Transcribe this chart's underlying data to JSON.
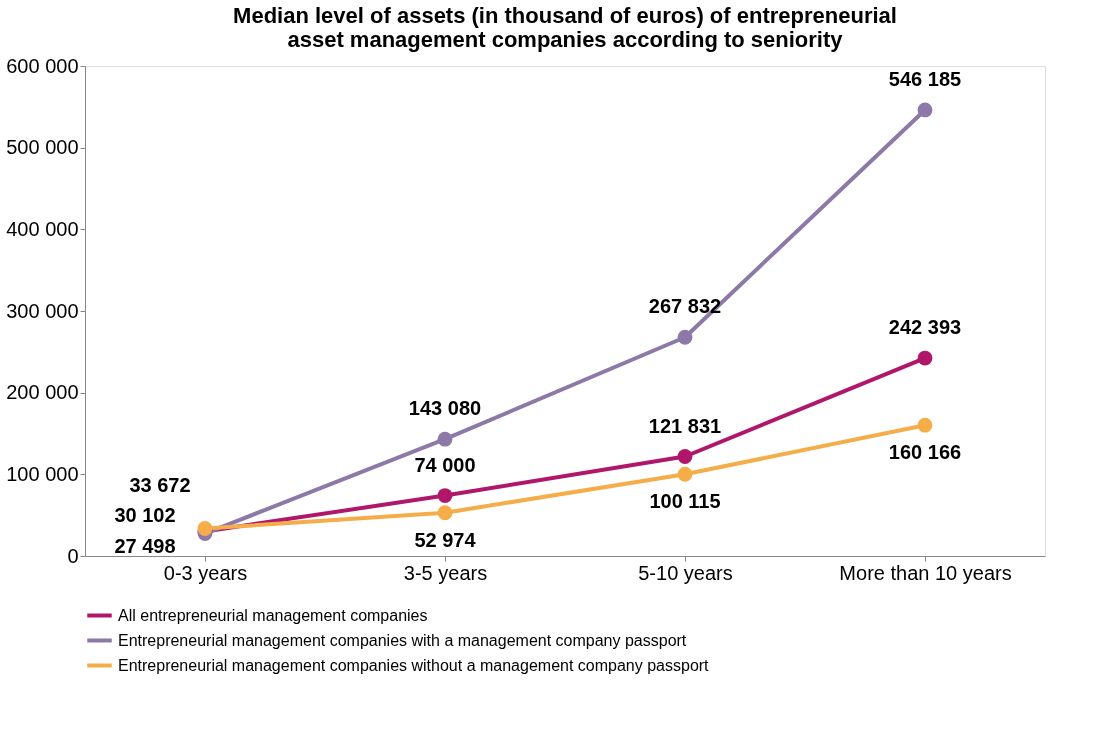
{
  "chart_data": {
    "type": "line",
    "title": [
      "Median level of assets (in thousand of euros) of entrepreneurial",
      "asset management companies according to seniority"
    ],
    "categories": [
      "0-3 years",
      "3-5 years",
      "5-10 years",
      "More than 10 years"
    ],
    "series": [
      {
        "name": "All entrepreneurial management companies",
        "color": "#b0176b",
        "values": [
          30102,
          74000,
          121831,
          242393
        ],
        "value_labels": [
          "30 102",
          "74 000",
          "121 831",
          "242 393"
        ]
      },
      {
        "name": "Entrepreneurial management companies with a management company passport",
        "color": "#8c79a8",
        "values": [
          27498,
          143080,
          267832,
          546185
        ],
        "value_labels": [
          "27 498",
          "143 080",
          "267 832",
          "546 185"
        ]
      },
      {
        "name": "Entrepreneurial management companies without a management company passport",
        "color": "#f5ad4a",
        "values": [
          33672,
          52974,
          100115,
          160166
        ],
        "value_labels": [
          "33 672",
          "52 974",
          "100 115",
          "160 166"
        ]
      }
    ],
    "ylim": [
      0,
      600000
    ],
    "yticks": [
      0,
      {
        "value": 100000,
        "label": "100 000"
      },
      {
        "value": 200000,
        "label": "200 000"
      },
      {
        "value": 300000,
        "label": "300 000"
      },
      {
        "value": 400000,
        "label": "400 000"
      },
      {
        "value": 500000,
        "label": "500 000"
      },
      {
        "value": 600000,
        "label": "600 000"
      }
    ],
    "marker": "circle",
    "line_style": "solid",
    "grid": false,
    "legend": "bottom"
  }
}
